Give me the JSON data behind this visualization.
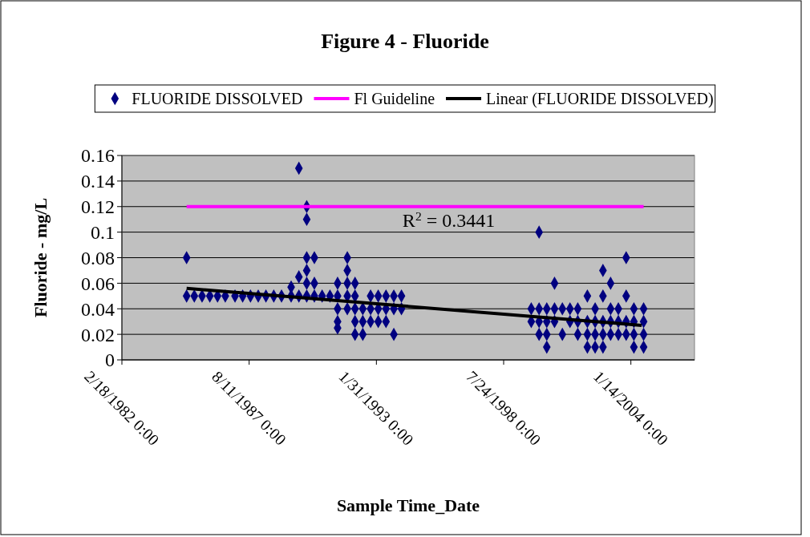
{
  "chart_data": {
    "type": "scatter",
    "title": "Figure 4 - Fluoride",
    "xlabel": "Sample Time_Date",
    "ylabel": "Fluoride - mg/L",
    "xlim": [
      "1982-02-18",
      "2006-10-10"
    ],
    "xticks": [
      {
        "value": "1982-02-18",
        "label": "2/18/1982 0:00"
      },
      {
        "value": "1987-08-11",
        "label": "8/11/1987 0:00"
      },
      {
        "value": "1993-01-31",
        "label": "1/31/1993 0:00"
      },
      {
        "value": "1998-07-24",
        "label": "7/24/1998 0:00"
      },
      {
        "value": "2004-01-14",
        "label": "1/14/2004 0:00"
      }
    ],
    "ylim": [
      0,
      0.16
    ],
    "yticks": [
      0,
      0.02,
      0.04,
      0.06,
      0.08,
      0.1,
      0.12,
      0.14,
      0.16
    ],
    "grid": "y",
    "legend": "top",
    "annotations": [
      "R$^{2}$ = 0.3441"
    ],
    "series": [
      {
        "name": "FLUORIDE DISSOLVED",
        "marker": "diamond",
        "color": "#000080",
        "x": [
          "1984-12",
          "1984-12",
          "1985-04",
          "1985-08",
          "1985-12",
          "1986-04",
          "1986-08",
          "1987-01",
          "1987-05",
          "1987-09",
          "1988-01",
          "1988-05",
          "1988-09",
          "1989-01",
          "1989-06",
          "1989-06",
          "1989-10",
          "1989-10",
          "1989-10",
          "1990-02",
          "1990-02",
          "1990-02",
          "1990-02",
          "1990-02",
          "1990-02",
          "1990-06",
          "1990-06",
          "1990-06",
          "1990-10",
          "1991-02",
          "1991-06",
          "1991-06",
          "1991-06",
          "1991-06",
          "1991-06",
          "1991-11",
          "1991-11",
          "1991-11",
          "1991-11",
          "1991-11",
          "1992-03",
          "1992-03",
          "1992-03",
          "1992-03",
          "1992-03",
          "1992-07",
          "1992-07",
          "1992-07",
          "1992-11",
          "1992-11",
          "1992-11",
          "1993-03",
          "1993-03",
          "1993-03",
          "1993-07",
          "1993-07",
          "1993-07",
          "1993-11",
          "1993-11",
          "1993-11",
          "1994-03",
          "1994-03",
          "1999-10",
          "1999-10",
          "2000-02",
          "2000-02",
          "2000-02",
          "2000-02",
          "2000-06",
          "2000-06",
          "2000-06",
          "2000-06",
          "2000-10",
          "2000-10",
          "2000-10",
          "2001-02",
          "2001-02",
          "2001-06",
          "2001-06",
          "2001-10",
          "2001-10",
          "2001-10",
          "2002-03",
          "2002-03",
          "2002-03",
          "2002-03",
          "2002-07",
          "2002-07",
          "2002-07",
          "2002-07",
          "2002-11",
          "2002-11",
          "2002-11",
          "2002-11",
          "2002-11",
          "2003-03",
          "2003-03",
          "2003-03",
          "2003-03",
          "2003-07",
          "2003-07",
          "2003-07",
          "2003-11",
          "2003-11",
          "2003-11",
          "2003-11",
          "2004-03",
          "2004-03",
          "2004-03",
          "2004-03",
          "2004-08",
          "2004-08",
          "2004-08",
          "2004-08"
        ],
        "values": [
          0.05,
          0.08,
          0.05,
          0.05,
          0.05,
          0.05,
          0.05,
          0.05,
          0.05,
          0.05,
          0.05,
          0.05,
          0.05,
          0.05,
          0.05,
          0.057,
          0.05,
          0.065,
          0.15,
          0.12,
          0.11,
          0.08,
          0.07,
          0.06,
          0.05,
          0.06,
          0.08,
          0.05,
          0.05,
          0.05,
          0.06,
          0.04,
          0.03,
          0.025,
          0.05,
          0.08,
          0.07,
          0.06,
          0.05,
          0.04,
          0.06,
          0.05,
          0.04,
          0.03,
          0.02,
          0.03,
          0.04,
          0.02,
          0.05,
          0.04,
          0.03,
          0.05,
          0.04,
          0.03,
          0.05,
          0.04,
          0.03,
          0.05,
          0.04,
          0.02,
          0.04,
          0.05,
          0.03,
          0.04,
          0.1,
          0.04,
          0.03,
          0.02,
          0.04,
          0.02,
          0.01,
          0.03,
          0.06,
          0.04,
          0.03,
          0.04,
          0.02,
          0.03,
          0.04,
          0.04,
          0.03,
          0.02,
          0.05,
          0.03,
          0.02,
          0.01,
          0.04,
          0.03,
          0.02,
          0.01,
          0.07,
          0.05,
          0.03,
          0.02,
          0.01,
          0.06,
          0.04,
          0.03,
          0.02,
          0.03,
          0.02,
          0.04,
          0.08,
          0.05,
          0.03,
          0.02,
          0.04,
          0.03,
          0.02,
          0.01,
          0.04,
          0.02,
          0.01,
          0.03
        ]
      },
      {
        "name": "Fl Guideline",
        "type": "line",
        "color": "#ff00ff",
        "x": [
          "1984-12",
          "2004-08"
        ],
        "values": [
          0.12,
          0.12
        ]
      },
      {
        "name": "Linear (FLUORIDE DISSOLVED)",
        "type": "line",
        "color": "#000000",
        "x": [
          "1984-12",
          "2004-07"
        ],
        "values": [
          0.056,
          0.027
        ]
      }
    ]
  }
}
